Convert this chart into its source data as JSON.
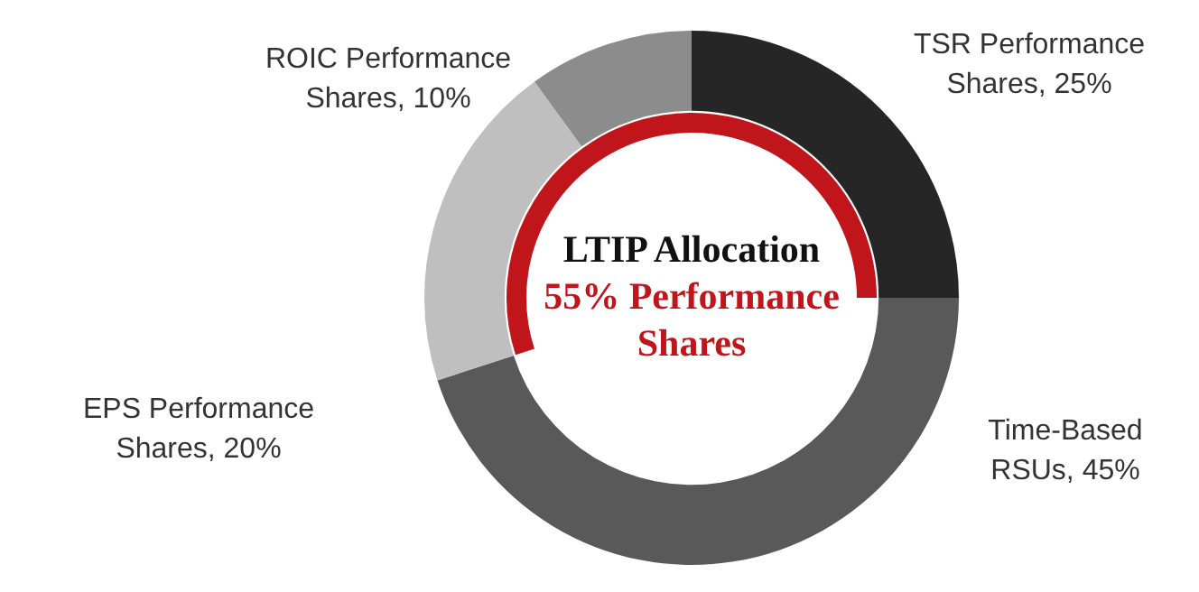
{
  "chart_data": {
    "type": "donut",
    "title": "LTIP Allocation",
    "annotations": [
      "55% Performance Shares"
    ],
    "categories": [
      "TSR Performance Shares",
      "Time-Based RSUs",
      "EPS Performance Shares",
      "ROIC Performance Shares"
    ],
    "values": [
      25,
      45,
      20,
      10
    ],
    "value_labels": [
      ", 25%",
      ", 45%",
      ", 20%",
      ", 10%"
    ],
    "colors": [
      "#262626",
      "#595959",
      "#bfbfbf",
      "#8c8c8c"
    ],
    "legend": false
  }
}
